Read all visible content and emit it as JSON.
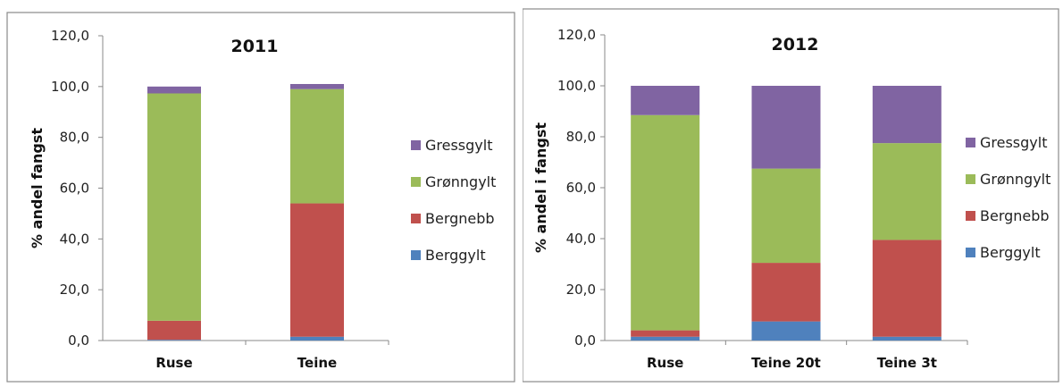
{
  "chart_data": [
    {
      "type": "bar",
      "stacked": true,
      "title": "2011",
      "ylabel": "% andel fangst",
      "xlabel": "",
      "ylim": [
        0,
        120
      ],
      "yticks": [
        "0,0",
        "20,0",
        "40,0",
        "60,0",
        "80,0",
        "100,0",
        "120,0"
      ],
      "categories": [
        "Ruse",
        "Teine"
      ],
      "series": [
        {
          "name": "Berggylt",
          "color": "#4F81BD",
          "values": [
            0.3,
            1.5
          ]
        },
        {
          "name": "Bergnebb",
          "color": "#C0504D",
          "values": [
            7.5,
            52.5
          ]
        },
        {
          "name": "Grønngylt",
          "color": "#9BBB59",
          "values": [
            89.5,
            45.0
          ]
        },
        {
          "name": "Gressgylt",
          "color": "#8064A2",
          "values": [
            2.7,
            2.0
          ]
        }
      ],
      "legend": [
        "Gressgylt",
        "Grønngylt",
        "Bergnebb",
        "Berggylt"
      ],
      "legend_position": "right",
      "grid": false
    },
    {
      "type": "bar",
      "stacked": true,
      "title": "2012",
      "ylabel": "% andel i fangst",
      "xlabel": "",
      "ylim": [
        0,
        120
      ],
      "yticks": [
        "0,0",
        "20,0",
        "40,0",
        "60,0",
        "80,0",
        "100,0",
        "120,0"
      ],
      "categories": [
        "Ruse",
        "Teine 20t",
        "Teine 3t"
      ],
      "series": [
        {
          "name": "Berggylt",
          "color": "#4F81BD",
          "values": [
            1.5,
            7.5,
            1.5
          ]
        },
        {
          "name": "Bergnebb",
          "color": "#C0504D",
          "values": [
            2.5,
            23.0,
            38.0
          ]
        },
        {
          "name": "Grønngylt",
          "color": "#9BBB59",
          "values": [
            84.5,
            37.0,
            38.0
          ]
        },
        {
          "name": "Gressgylt",
          "color": "#8064A2",
          "values": [
            11.5,
            32.5,
            22.5
          ]
        }
      ],
      "legend": [
        "Gressgylt",
        "Grønngylt",
        "Bergnebb",
        "Berggylt"
      ],
      "legend_position": "right",
      "grid": false
    }
  ]
}
